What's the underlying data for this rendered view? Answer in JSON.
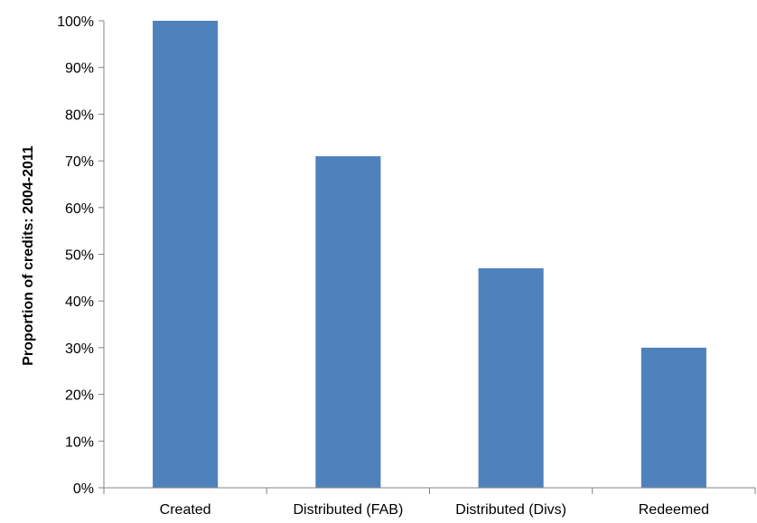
{
  "chart_data": {
    "type": "bar",
    "title": "",
    "xlabel": "",
    "ylabel": "Proportion of credits: 2004-2011",
    "categories": [
      "Created",
      "Distributed (FAB)",
      "Distributed (Divs)",
      "Redeemed"
    ],
    "values": [
      100,
      71,
      47,
      30
    ],
    "unit": "%",
    "ylim": [
      0,
      100
    ],
    "yticks": [
      0,
      10,
      20,
      30,
      40,
      50,
      60,
      70,
      80,
      90,
      100
    ],
    "ytick_labels": [
      "0%",
      "10%",
      "20%",
      "30%",
      "40%",
      "50%",
      "60%",
      "70%",
      "80%",
      "90%",
      "100%"
    ],
    "grid": false,
    "legend": "none",
    "bar_color": "#4F81BD",
    "axis_color": "#868686"
  }
}
